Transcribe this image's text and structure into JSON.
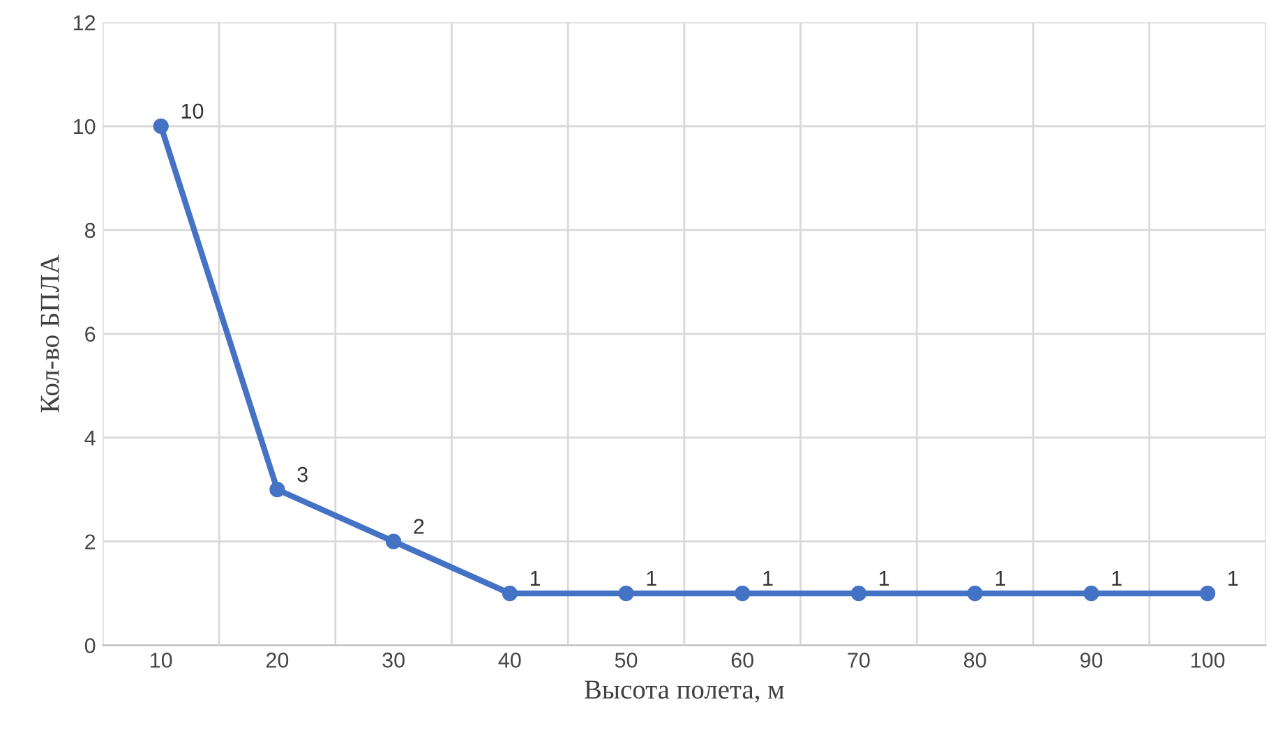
{
  "chart_data": {
    "type": "line",
    "xlabel": "Высота полета, м",
    "ylabel": "Кол-во БПЛА",
    "categories": [
      "10",
      "20",
      "30",
      "40",
      "50",
      "60",
      "70",
      "80",
      "90",
      "100"
    ],
    "series": [
      {
        "color": "#4472c4",
        "values": [
          10,
          3,
          2,
          1,
          1,
          1,
          1,
          1,
          1,
          1
        ]
      }
    ],
    "ylim": [
      0,
      12
    ],
    "yticks": [
      0,
      2,
      4,
      6,
      8,
      10,
      12
    ],
    "grid": true,
    "marker": "circle",
    "line_style": "solid",
    "data_labels": true,
    "legend": false
  }
}
